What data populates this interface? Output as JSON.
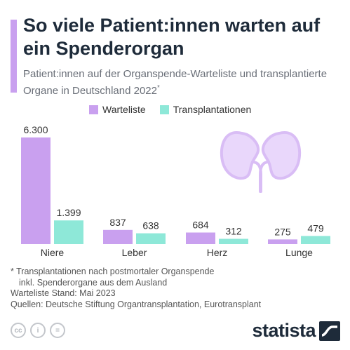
{
  "header": {
    "title": "So viele Patient:innen warten auf ein Spenderorgan",
    "subtitle": "Patient:innen auf der Organspende-Warteliste und transplantierte Organe in Deutschland 2022",
    "subtitle_mark": "*"
  },
  "colors": {
    "accent": "#c9a0ef",
    "warteliste": "#c9a0ef",
    "transplantationen": "#8ee8d8",
    "title": "#1e2b3a"
  },
  "icons": {
    "organ": "kidney-icon",
    "license": [
      "cc-icon",
      "person-icon",
      "equals-icon"
    ],
    "brand": "statista-logo-icon"
  },
  "chart_data": {
    "type": "bar",
    "title": "So viele Patient:innen warten auf ein Spenderorgan",
    "categories": [
      "Niere",
      "Leber",
      "Herz",
      "Lunge"
    ],
    "series": [
      {
        "name": "Warteliste",
        "values": [
          6300,
          837,
          684,
          275
        ],
        "labels": [
          "6.300",
          "837",
          "684",
          "275"
        ]
      },
      {
        "name": "Transplantationen",
        "values": [
          1399,
          638,
          312,
          479
        ],
        "labels": [
          "1.399",
          "638",
          "312",
          "479"
        ]
      }
    ],
    "legend": "top",
    "grid": false
  },
  "footnotes": {
    "line1": "* Transplantationen nach postmortaler Organspende",
    "line2": "inkl. Spenderorgane aus dem Ausland",
    "line3": "Warteliste Stand: Mai 2023",
    "line4": "Quellen: Deutsche Stiftung Organtransplantation, Eurotransplant"
  },
  "license": {
    "cc": "cc",
    "by": "i",
    "nd": "="
  },
  "brand": {
    "name": "statista"
  }
}
